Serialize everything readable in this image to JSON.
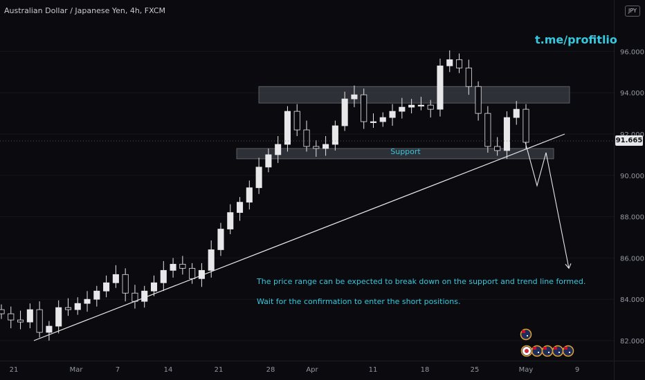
{
  "chart": {
    "title": "Australian Dollar / Japanese Yen, 4h, FXCM",
    "currency": "JPY",
    "last_price": "91.665",
    "brand": "t.me/profitlio",
    "support_label": "Support",
    "annotation_1": "The price range can be expected to break down on the support and trend line formed.",
    "annotation_2": "Wait for the confirmation to enter the short positions.",
    "colors": {
      "background": "#0b0b0f",
      "candle": "#e8e8ea",
      "accent": "#35c8de",
      "zone": "#3a3d45",
      "text": "#9598a1"
    },
    "icons": [
      "australia-flag-icon",
      "japan-flag-icon",
      "australia-flag-icon",
      "australia-flag-icon",
      "australia-flag-icon",
      "australia-flag-icon"
    ]
  },
  "chart_data": {
    "type": "candlestick",
    "x_labels": [
      "21",
      "Mar",
      "7",
      "14",
      "21",
      "28",
      "Apr",
      "11",
      "18",
      "25",
      "May",
      "9"
    ],
    "y_ticks": [
      "82.000",
      "84.000",
      "86.000",
      "88.000",
      "90.000",
      "92.000",
      "94.000",
      "96.000"
    ],
    "ylim": [
      81.0,
      97.6
    ],
    "trend_line": {
      "start": [
        "Feb 21",
        82.0
      ],
      "end": [
        "May 6",
        92.0
      ]
    },
    "resistance_zone": [
      93.5,
      94.3
    ],
    "support_zone": [
      90.8,
      91.3
    ],
    "projection": [
      91.6,
      89.5,
      91.1,
      85.5
    ],
    "close_series": [
      83.3,
      83.0,
      82.9,
      83.5,
      82.4,
      82.7,
      83.6,
      83.5,
      83.8,
      84.0,
      84.4,
      84.8,
      85.2,
      84.3,
      83.9,
      84.4,
      84.8,
      85.4,
      85.7,
      85.5,
      85.0,
      85.4,
      86.4,
      87.4,
      88.2,
      88.7,
      89.4,
      90.4,
      91.0,
      91.5,
      93.1,
      92.2,
      91.4,
      91.3,
      91.5,
      92.4,
      93.7,
      93.9,
      92.6,
      92.6,
      92.8,
      93.1,
      93.3,
      93.4,
      93.4,
      93.2,
      95.3,
      95.6,
      95.2,
      94.3,
      93.0,
      91.4,
      91.2,
      92.8,
      93.2,
      91.6
    ]
  }
}
